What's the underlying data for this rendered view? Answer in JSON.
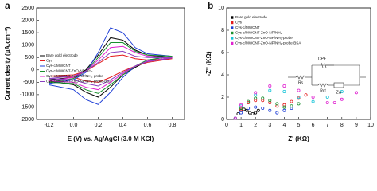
{
  "chart_data": [
    {
      "type": "line",
      "panel": "a",
      "x_label": "E (V) vs. Ag/AgCl (3.0 M KCl)",
      "y_label": "Current desity (µA.cm⁻²)",
      "xlim": [
        -0.3,
        0.9
      ],
      "xticks": [
        -0.2,
        {
          "value": 0,
          "label": "0.0"
        },
        0.2,
        0.4,
        0.6,
        0.8
      ],
      "ylim": [
        -2000,
        2500
      ],
      "yticks": [
        -2000,
        -1500,
        -1000,
        -500,
        0,
        500,
        1000,
        1500,
        2000,
        2500
      ],
      "x": [
        -0.2,
        0,
        0.1,
        0.2,
        0.3,
        0.4,
        0.5,
        0.6,
        0.8,
        0.6,
        0.5,
        0.4,
        0.3,
        0.2,
        0.1,
        0,
        -0.2
      ],
      "series": [
        {
          "name": "Bare gold electrode",
          "color": "#000000",
          "values": [
            -400,
            -300,
            0,
            600,
            1300,
            1200,
            800,
            600,
            500,
            350,
            100,
            -200,
            -700,
            -1100,
            -900,
            -600,
            -450
          ]
        },
        {
          "name": "Cys",
          "color": "#e41a1c",
          "values": [
            -250,
            -200,
            -50,
            250,
            550,
            600,
            450,
            400,
            450,
            300,
            150,
            -50,
            -300,
            -500,
            -450,
            -300,
            -250
          ]
        },
        {
          "name": "Cys-c/MWCNT",
          "color": "#1f3fd6",
          "values": [
            -550,
            -400,
            -100,
            700,
            1700,
            1500,
            900,
            650,
            550,
            400,
            150,
            -300,
            -900,
            -1400,
            -1200,
            -800,
            -600
          ]
        },
        {
          "name": "Cys-c/MWCNT-ZnO-NP/NH₂",
          "color": "#1a8f2e",
          "values": [
            -500,
            -350,
            -50,
            500,
            1100,
            1100,
            750,
            600,
            550,
            400,
            150,
            -200,
            -600,
            -950,
            -800,
            -550,
            -500
          ]
        },
        {
          "name": "Cys-c/MWCNT-ZnO-NP/NH₂-probe",
          "color": "#e020d0",
          "values": [
            -450,
            -300,
            -50,
            400,
            900,
            950,
            700,
            550,
            500,
            350,
            150,
            -150,
            -500,
            -800,
            -700,
            -500,
            -450
          ]
        },
        {
          "name": "Cys-c/MWCNT-ZnO-NP/NH₂-probe-BSA",
          "color": "#8a3fc0",
          "values": [
            -350,
            -250,
            -50,
            300,
            700,
            750,
            550,
            500,
            480,
            330,
            150,
            -100,
            -400,
            -650,
            -550,
            -400,
            -350
          ]
        }
      ]
    },
    {
      "type": "scatter",
      "panel": "b",
      "x_label": "Z' (KΩ)",
      "y_label": "-Z'' (KΩ)",
      "xlim": [
        0,
        10
      ],
      "xticks": [
        0,
        1,
        2,
        3,
        4,
        5,
        6,
        7,
        8,
        9,
        10
      ],
      "ylim": [
        0,
        10
      ],
      "yticks": [
        0,
        2,
        4,
        6,
        8,
        10
      ],
      "inset": {
        "CPE": "CPE",
        "Rs": "Rs",
        "Rct": "Rct",
        "Zw": "Zw"
      },
      "series": [
        {
          "name": "Bare gold electrode",
          "color": "#000000",
          "x": [
            0.6,
            0.8,
            1.0,
            1.2,
            1.4,
            1.6,
            1.8,
            2.0,
            2.2
          ],
          "values": [
            0.1,
            0.5,
            0.8,
            0.9,
            0.8,
            0.6,
            0.5,
            0.6,
            0.8
          ]
        },
        {
          "name": "Cys",
          "color": "#e41a1c",
          "x": [
            0.6,
            1,
            1.5,
            2,
            2.5,
            3,
            3.5,
            4,
            4.5,
            5,
            5.5
          ],
          "values": [
            0.1,
            0.9,
            1.5,
            1.7,
            1.7,
            1.5,
            1.2,
            1.3,
            1.6,
            1.9,
            2.2
          ]
        },
        {
          "name": "Cys-c/MWCNT",
          "color": "#1f3fd6",
          "x": [
            0.6,
            1,
            1.5,
            2,
            2.5,
            3,
            3.5,
            4,
            4.5
          ],
          "values": [
            0.1,
            0.6,
            1.0,
            1.1,
            1.0,
            0.8,
            0.6,
            0.8,
            1.0
          ]
        },
        {
          "name": "Cys-c/MWCNT-ZnO-NP/NH₂",
          "color": "#1a8f2e",
          "x": [
            0.6,
            1,
            1.5,
            2,
            2.5,
            3,
            3.5,
            4,
            4.5,
            5
          ],
          "values": [
            0.1,
            1,
            1.6,
            1.9,
            1.9,
            1.7,
            1.4,
            1.1,
            1.2,
            1.4
          ]
        },
        {
          "name": "Cys-c/MWCNT-ZnO-NP/NH₂-probe",
          "color": "#17c4d8",
          "x": [
            0.6,
            1,
            2,
            3,
            4,
            5,
            6,
            7,
            8
          ],
          "values": [
            0.1,
            1.2,
            2.2,
            2.6,
            2.5,
            2.0,
            1.6,
            2.0,
            2.5
          ]
        },
        {
          "name": "Cys-c/MWCNT-ZnO-NP/NH₂-probe-BSA",
          "color": "#e020d0",
          "x": [
            0.6,
            1,
            2,
            3,
            4,
            5,
            6,
            7,
            7.5,
            8,
            9
          ],
          "values": [
            0.1,
            1.3,
            2.4,
            3.0,
            3.0,
            2.6,
            2.0,
            1.5,
            1.5,
            1.8,
            2.4
          ]
        }
      ]
    }
  ]
}
